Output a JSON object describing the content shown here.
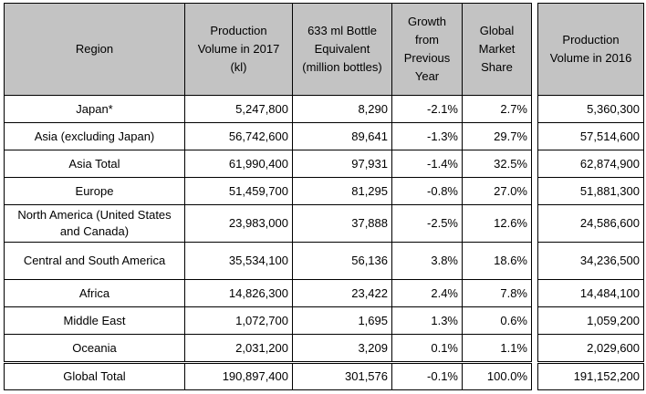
{
  "headers": {
    "region": "Region",
    "prod2017": "Production Volume in 2017 (kl)",
    "bottles": "633 ml Bottle Equivalent (million bottles)",
    "growth": "Growth from Previous Year",
    "share": "Global Market Share",
    "prod2016": "Production Volume in 2016"
  },
  "rows": [
    {
      "region": "Japan*",
      "prod2017": "5,247,800",
      "bottles": "8,290",
      "growth": "-2.1%",
      "share": "2.7%",
      "prod2016": "5,360,300"
    },
    {
      "region": "Asia (excluding Japan)",
      "prod2017": "56,742,600",
      "bottles": "89,641",
      "growth": "-1.3%",
      "share": "29.7%",
      "prod2016": "57,514,600"
    },
    {
      "region": "Asia Total",
      "prod2017": "61,990,400",
      "bottles": "97,931",
      "growth": "-1.4%",
      "share": "32.5%",
      "prod2016": "62,874,900"
    },
    {
      "region": "Europe",
      "prod2017": "51,459,700",
      "bottles": "81,295",
      "growth": "-0.8%",
      "share": "27.0%",
      "prod2016": "51,881,300"
    },
    {
      "region": "North America (United States and Canada)",
      "prod2017": "23,983,000",
      "bottles": "37,888",
      "growth": "-2.5%",
      "share": "12.6%",
      "prod2016": "24,586,600"
    },
    {
      "region": "Central and South America",
      "prod2017": "35,534,100",
      "bottles": "56,136",
      "growth": "3.8%",
      "share": "18.6%",
      "prod2016": "34,236,500"
    },
    {
      "region": "Africa",
      "prod2017": "14,826,300",
      "bottles": "23,422",
      "growth": "2.4%",
      "share": "7.8%",
      "prod2016": "14,484,100"
    },
    {
      "region": "Middle East",
      "prod2017": "1,072,700",
      "bottles": "1,695",
      "growth": "1.3%",
      "share": "0.6%",
      "prod2016": "1,059,200"
    },
    {
      "region": "Oceania",
      "prod2017": "2,031,200",
      "bottles": "3,209",
      "growth": "0.1%",
      "share": "1.1%",
      "prod2016": "2,029,600"
    }
  ],
  "total": {
    "region": "Global Total",
    "prod2017": "190,897,400",
    "bottles": "301,576",
    "growth": "-0.1%",
    "share": "100.0%",
    "prod2016": "191,152,200"
  },
  "colors": {
    "header_bg": "#c3c3c3",
    "border": "#000000"
  }
}
